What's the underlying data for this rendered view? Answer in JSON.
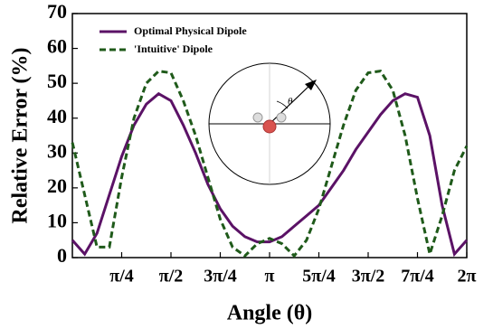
{
  "chart_data": {
    "type": "line",
    "xlabel": "Angle (θ)",
    "ylabel": "Relative Error (%)",
    "annotation": "θ",
    "x": [
      0,
      0.1963,
      0.3927,
      0.589,
      0.7854,
      0.9817,
      1.1781,
      1.3744,
      1.5708,
      1.7671,
      1.9635,
      2.1598,
      2.3562,
      2.5525,
      2.7489,
      2.9452,
      3.1416,
      3.3379,
      3.5343,
      3.7306,
      3.927,
      4.1233,
      4.3197,
      4.516,
      4.7124,
      4.9087,
      5.1051,
      5.3014,
      5.4978,
      5.6941,
      5.8905,
      6.0868,
      6.2832
    ],
    "series": [
      {
        "name": "Optimal Physical Dipole",
        "color": "#5b1266",
        "dash": "solid",
        "values": [
          5,
          1,
          7,
          18,
          29,
          38,
          44,
          47,
          45,
          38,
          30,
          21,
          14,
          9,
          6,
          4.5,
          4.5,
          6,
          9,
          12,
          15,
          20,
          25,
          31,
          36,
          41,
          45,
          47,
          46,
          35,
          15,
          1,
          5
        ]
      },
      {
        "name": "'Intuitive' Dipole",
        "color": "#1f5a1a",
        "dash": "dashed",
        "values": [
          33,
          18,
          3,
          3,
          23,
          40,
          50,
          53.5,
          53,
          45,
          35,
          23,
          11,
          3,
          0.5,
          4,
          5.5,
          4,
          0.5,
          5,
          14,
          26,
          38,
          48,
          53,
          53.5,
          48,
          35,
          17,
          1,
          12,
          25,
          32
        ]
      }
    ],
    "xlim": [
      0,
      6.2832
    ],
    "ylim": [
      0,
      70
    ],
    "xticks": [
      {
        "value": 0.7854,
        "label": "π/4"
      },
      {
        "value": 1.5708,
        "label": "π/2"
      },
      {
        "value": 2.3562,
        "label": "3π/4"
      },
      {
        "value": 3.1416,
        "label": "π"
      },
      {
        "value": 3.927,
        "label": "5π/4"
      },
      {
        "value": 4.7124,
        "label": "3π/2"
      },
      {
        "value": 5.4978,
        "label": "7π/4"
      },
      {
        "value": 6.2832,
        "label": "2π"
      }
    ],
    "yticks": [
      0,
      10,
      20,
      30,
      40,
      50,
      60,
      70
    ],
    "legend": "upper-left"
  }
}
